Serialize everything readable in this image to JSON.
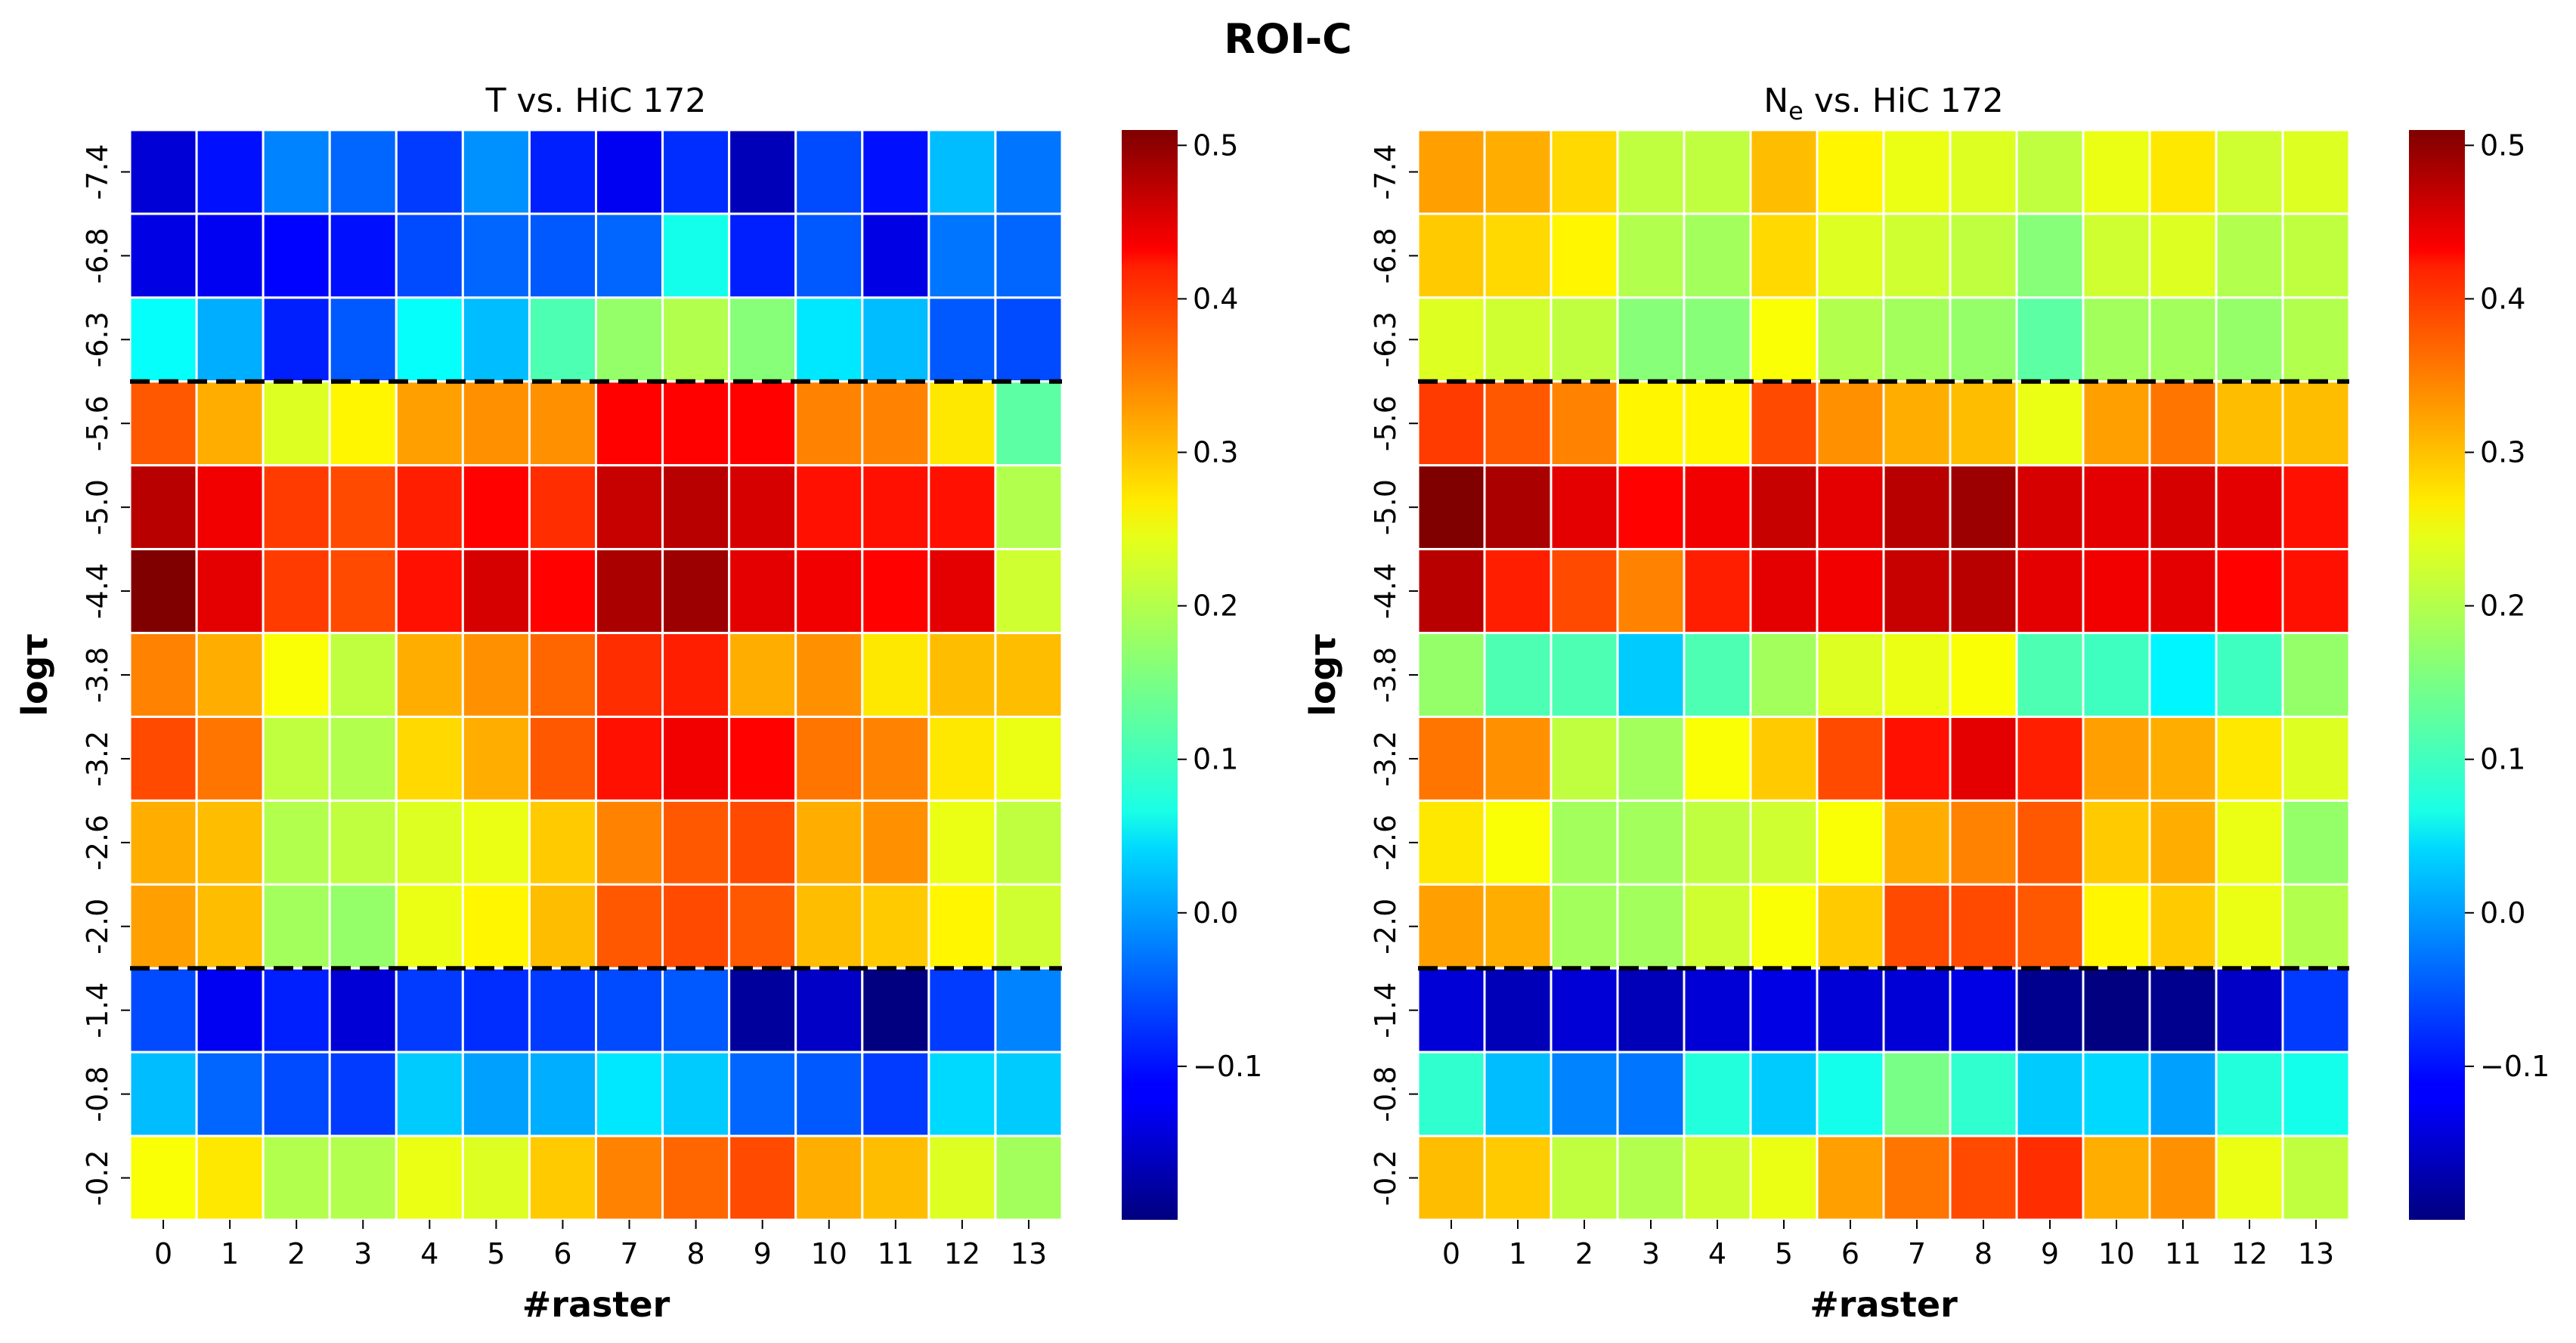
{
  "figure_title": "ROI-C",
  "chart_data": [
    {
      "type": "heatmap",
      "title": "T vs. HiC 172",
      "title_main": "T vs. HiC 172",
      "xlabel": "#raster",
      "ylabel": "logτ",
      "x_categories": [
        "0",
        "1",
        "2",
        "3",
        "4",
        "5",
        "6",
        "7",
        "8",
        "9",
        "10",
        "11",
        "12",
        "13"
      ],
      "y_categories": [
        "-7.4",
        "-6.8",
        "-6.3",
        "-5.6",
        "-5.0",
        "-4.4",
        "-3.8",
        "-3.2",
        "-2.6",
        "-2.0",
        "-1.4",
        "-0.8",
        "-0.2"
      ],
      "values": [
        [
          -0.14,
          -0.1,
          -0.02,
          -0.04,
          -0.07,
          -0.01,
          -0.09,
          -0.12,
          -0.08,
          -0.16,
          -0.06,
          -0.1,
          0.02,
          -0.03
        ],
        [
          -0.13,
          -0.12,
          -0.11,
          -0.1,
          -0.06,
          -0.04,
          -0.05,
          -0.04,
          0.08,
          -0.09,
          -0.05,
          -0.13,
          -0.03,
          -0.04
        ],
        [
          0.07,
          0.01,
          -0.09,
          -0.05,
          0.07,
          0.02,
          0.12,
          0.17,
          0.19,
          0.16,
          0.05,
          0.02,
          -0.05,
          -0.06
        ],
        [
          0.36,
          0.3,
          0.22,
          0.25,
          0.31,
          0.32,
          0.32,
          0.42,
          0.42,
          0.42,
          0.33,
          0.33,
          0.26,
          0.13
        ],
        [
          0.47,
          0.43,
          0.38,
          0.37,
          0.4,
          0.42,
          0.39,
          0.46,
          0.47,
          0.45,
          0.41,
          0.41,
          0.41,
          0.19
        ],
        [
          0.51,
          0.44,
          0.38,
          0.37,
          0.41,
          0.45,
          0.42,
          0.48,
          0.49,
          0.44,
          0.43,
          0.42,
          0.44,
          0.21
        ],
        [
          0.33,
          0.3,
          0.24,
          0.2,
          0.3,
          0.32,
          0.35,
          0.39,
          0.4,
          0.3,
          0.32,
          0.26,
          0.29,
          0.29
        ],
        [
          0.37,
          0.34,
          0.2,
          0.19,
          0.27,
          0.3,
          0.36,
          0.41,
          0.43,
          0.42,
          0.34,
          0.33,
          0.26,
          0.23
        ],
        [
          0.3,
          0.29,
          0.19,
          0.2,
          0.22,
          0.23,
          0.28,
          0.33,
          0.36,
          0.37,
          0.3,
          0.32,
          0.23,
          0.2
        ],
        [
          0.31,
          0.29,
          0.18,
          0.17,
          0.23,
          0.25,
          0.29,
          0.36,
          0.37,
          0.36,
          0.29,
          0.28,
          0.25,
          0.21
        ],
        [
          -0.06,
          -0.12,
          -0.09,
          -0.14,
          -0.07,
          -0.08,
          -0.07,
          -0.06,
          -0.05,
          -0.18,
          -0.15,
          -0.2,
          -0.07,
          -0.02
        ],
        [
          0.02,
          -0.04,
          -0.06,
          -0.07,
          0.03,
          0.0,
          0.01,
          0.05,
          0.03,
          -0.04,
          -0.05,
          -0.07,
          0.04,
          0.03
        ],
        [
          0.24,
          0.26,
          0.19,
          0.19,
          0.23,
          0.22,
          0.28,
          0.33,
          0.35,
          0.37,
          0.3,
          0.29,
          0.22,
          0.18
        ]
      ],
      "dashed_lines_after_row": [
        2,
        9
      ],
      "colorbar": {
        "vmin": -0.2,
        "vmax": 0.51,
        "ticks": [
          "0.5",
          "0.4",
          "0.3",
          "0.2",
          "0.1",
          "0.0",
          "−0.1"
        ],
        "tick_values": [
          0.5,
          0.4,
          0.3,
          0.2,
          0.1,
          0.0,
          -0.1
        ]
      }
    },
    {
      "type": "heatmap",
      "title": "Ne vs. HiC 172",
      "title_main": "N",
      "title_sub": "e",
      "title_rest": " vs. HiC 172",
      "xlabel": "#raster",
      "ylabel": "logτ",
      "x_categories": [
        "0",
        "1",
        "2",
        "3",
        "4",
        "5",
        "6",
        "7",
        "8",
        "9",
        "10",
        "11",
        "12",
        "13"
      ],
      "y_categories": [
        "-7.4",
        "-6.8",
        "-6.3",
        "-5.6",
        "-5.0",
        "-4.4",
        "-3.8",
        "-3.2",
        "-2.6",
        "-2.0",
        "-1.4",
        "-0.8",
        "-0.2"
      ],
      "values": [
        [
          0.31,
          0.3,
          0.27,
          0.2,
          0.2,
          0.29,
          0.25,
          0.23,
          0.22,
          0.2,
          0.23,
          0.26,
          0.21,
          0.22
        ],
        [
          0.28,
          0.27,
          0.25,
          0.19,
          0.18,
          0.27,
          0.22,
          0.21,
          0.2,
          0.16,
          0.21,
          0.22,
          0.19,
          0.2
        ],
        [
          0.22,
          0.21,
          0.2,
          0.16,
          0.16,
          0.24,
          0.19,
          0.18,
          0.17,
          0.13,
          0.18,
          0.18,
          0.17,
          0.19
        ],
        [
          0.38,
          0.36,
          0.33,
          0.25,
          0.25,
          0.37,
          0.32,
          0.3,
          0.29,
          0.23,
          0.31,
          0.34,
          0.29,
          0.29
        ],
        [
          0.51,
          0.48,
          0.44,
          0.42,
          0.43,
          0.46,
          0.44,
          0.47,
          0.49,
          0.45,
          0.44,
          0.45,
          0.44,
          0.41
        ],
        [
          0.47,
          0.4,
          0.37,
          0.33,
          0.4,
          0.44,
          0.43,
          0.46,
          0.47,
          0.44,
          0.43,
          0.44,
          0.42,
          0.41
        ],
        [
          0.17,
          0.12,
          0.12,
          0.03,
          0.12,
          0.18,
          0.22,
          0.23,
          0.24,
          0.12,
          0.11,
          0.06,
          0.11,
          0.17
        ],
        [
          0.34,
          0.32,
          0.2,
          0.18,
          0.24,
          0.28,
          0.37,
          0.41,
          0.44,
          0.4,
          0.31,
          0.3,
          0.26,
          0.22
        ],
        [
          0.26,
          0.24,
          0.18,
          0.18,
          0.2,
          0.21,
          0.24,
          0.3,
          0.33,
          0.36,
          0.28,
          0.3,
          0.23,
          0.17
        ],
        [
          0.31,
          0.3,
          0.18,
          0.18,
          0.21,
          0.24,
          0.28,
          0.37,
          0.37,
          0.36,
          0.25,
          0.28,
          0.23,
          0.19
        ],
        [
          -0.14,
          -0.16,
          -0.14,
          -0.16,
          -0.14,
          -0.13,
          -0.14,
          -0.14,
          -0.13,
          -0.19,
          -0.2,
          -0.19,
          -0.15,
          -0.07
        ],
        [
          0.1,
          0.02,
          -0.02,
          -0.03,
          0.09,
          0.03,
          0.08,
          0.15,
          0.1,
          0.03,
          0.04,
          0.0,
          0.09,
          0.08
        ],
        [
          0.29,
          0.28,
          0.2,
          0.19,
          0.21,
          0.23,
          0.31,
          0.34,
          0.37,
          0.39,
          0.3,
          0.32,
          0.23,
          0.2
        ]
      ],
      "dashed_lines_after_row": [
        2,
        9
      ],
      "colorbar": {
        "vmin": -0.2,
        "vmax": 0.51,
        "ticks": [
          "0.5",
          "0.4",
          "0.3",
          "0.2",
          "0.1",
          "0.0",
          "−0.1"
        ],
        "tick_values": [
          0.5,
          0.4,
          0.3,
          0.2,
          0.1,
          0.0,
          -0.1
        ]
      }
    }
  ]
}
